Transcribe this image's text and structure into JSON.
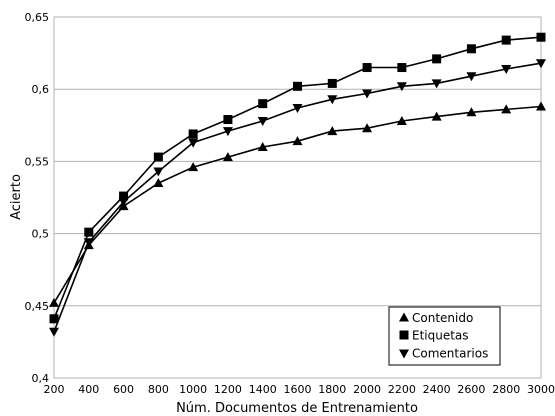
{
  "chart_data": {
    "type": "line",
    "title": "",
    "xlabel": "Núm. Documentos de Entrenamiento",
    "ylabel": "Acierto",
    "x": [
      200,
      400,
      600,
      800,
      1000,
      1200,
      1400,
      1600,
      1800,
      2000,
      2200,
      2400,
      2600,
      2800,
      3000
    ],
    "xticks": [
      "200",
      "400",
      "600",
      "800",
      "1000",
      "1200",
      "1400",
      "1600",
      "1800",
      "2000",
      "2200",
      "2400",
      "2600",
      "2800",
      "3000"
    ],
    "yticks": [
      "0,4",
      "0,45",
      "0,5",
      "0,55",
      "0,6",
      "0,65"
    ],
    "xlim": [
      200,
      3000
    ],
    "ylim": [
      0.4,
      0.65
    ],
    "grid": "horizontal",
    "legend_position": "bottom-right",
    "series": [
      {
        "name": "Contenido",
        "marker": "triangle-up",
        "color": "#000000",
        "values": [
          0.452,
          0.492,
          0.519,
          0.535,
          0.546,
          0.553,
          0.56,
          0.564,
          0.571,
          0.573,
          0.578,
          0.581,
          0.584,
          0.586,
          0.588
        ]
      },
      {
        "name": "Etiquetas",
        "marker": "square",
        "color": "#000000",
        "values": [
          0.441,
          0.501,
          0.526,
          0.553,
          0.569,
          0.579,
          0.59,
          0.602,
          0.604,
          0.615,
          0.615,
          0.621,
          0.628,
          0.634,
          0.636
        ]
      },
      {
        "name": "Comentarios",
        "marker": "triangle-down",
        "color": "#000000",
        "values": [
          0.432,
          0.494,
          0.522,
          0.543,
          0.563,
          0.571,
          0.578,
          0.587,
          0.593,
          0.597,
          0.602,
          0.604,
          0.609,
          0.614,
          0.618
        ]
      }
    ]
  }
}
